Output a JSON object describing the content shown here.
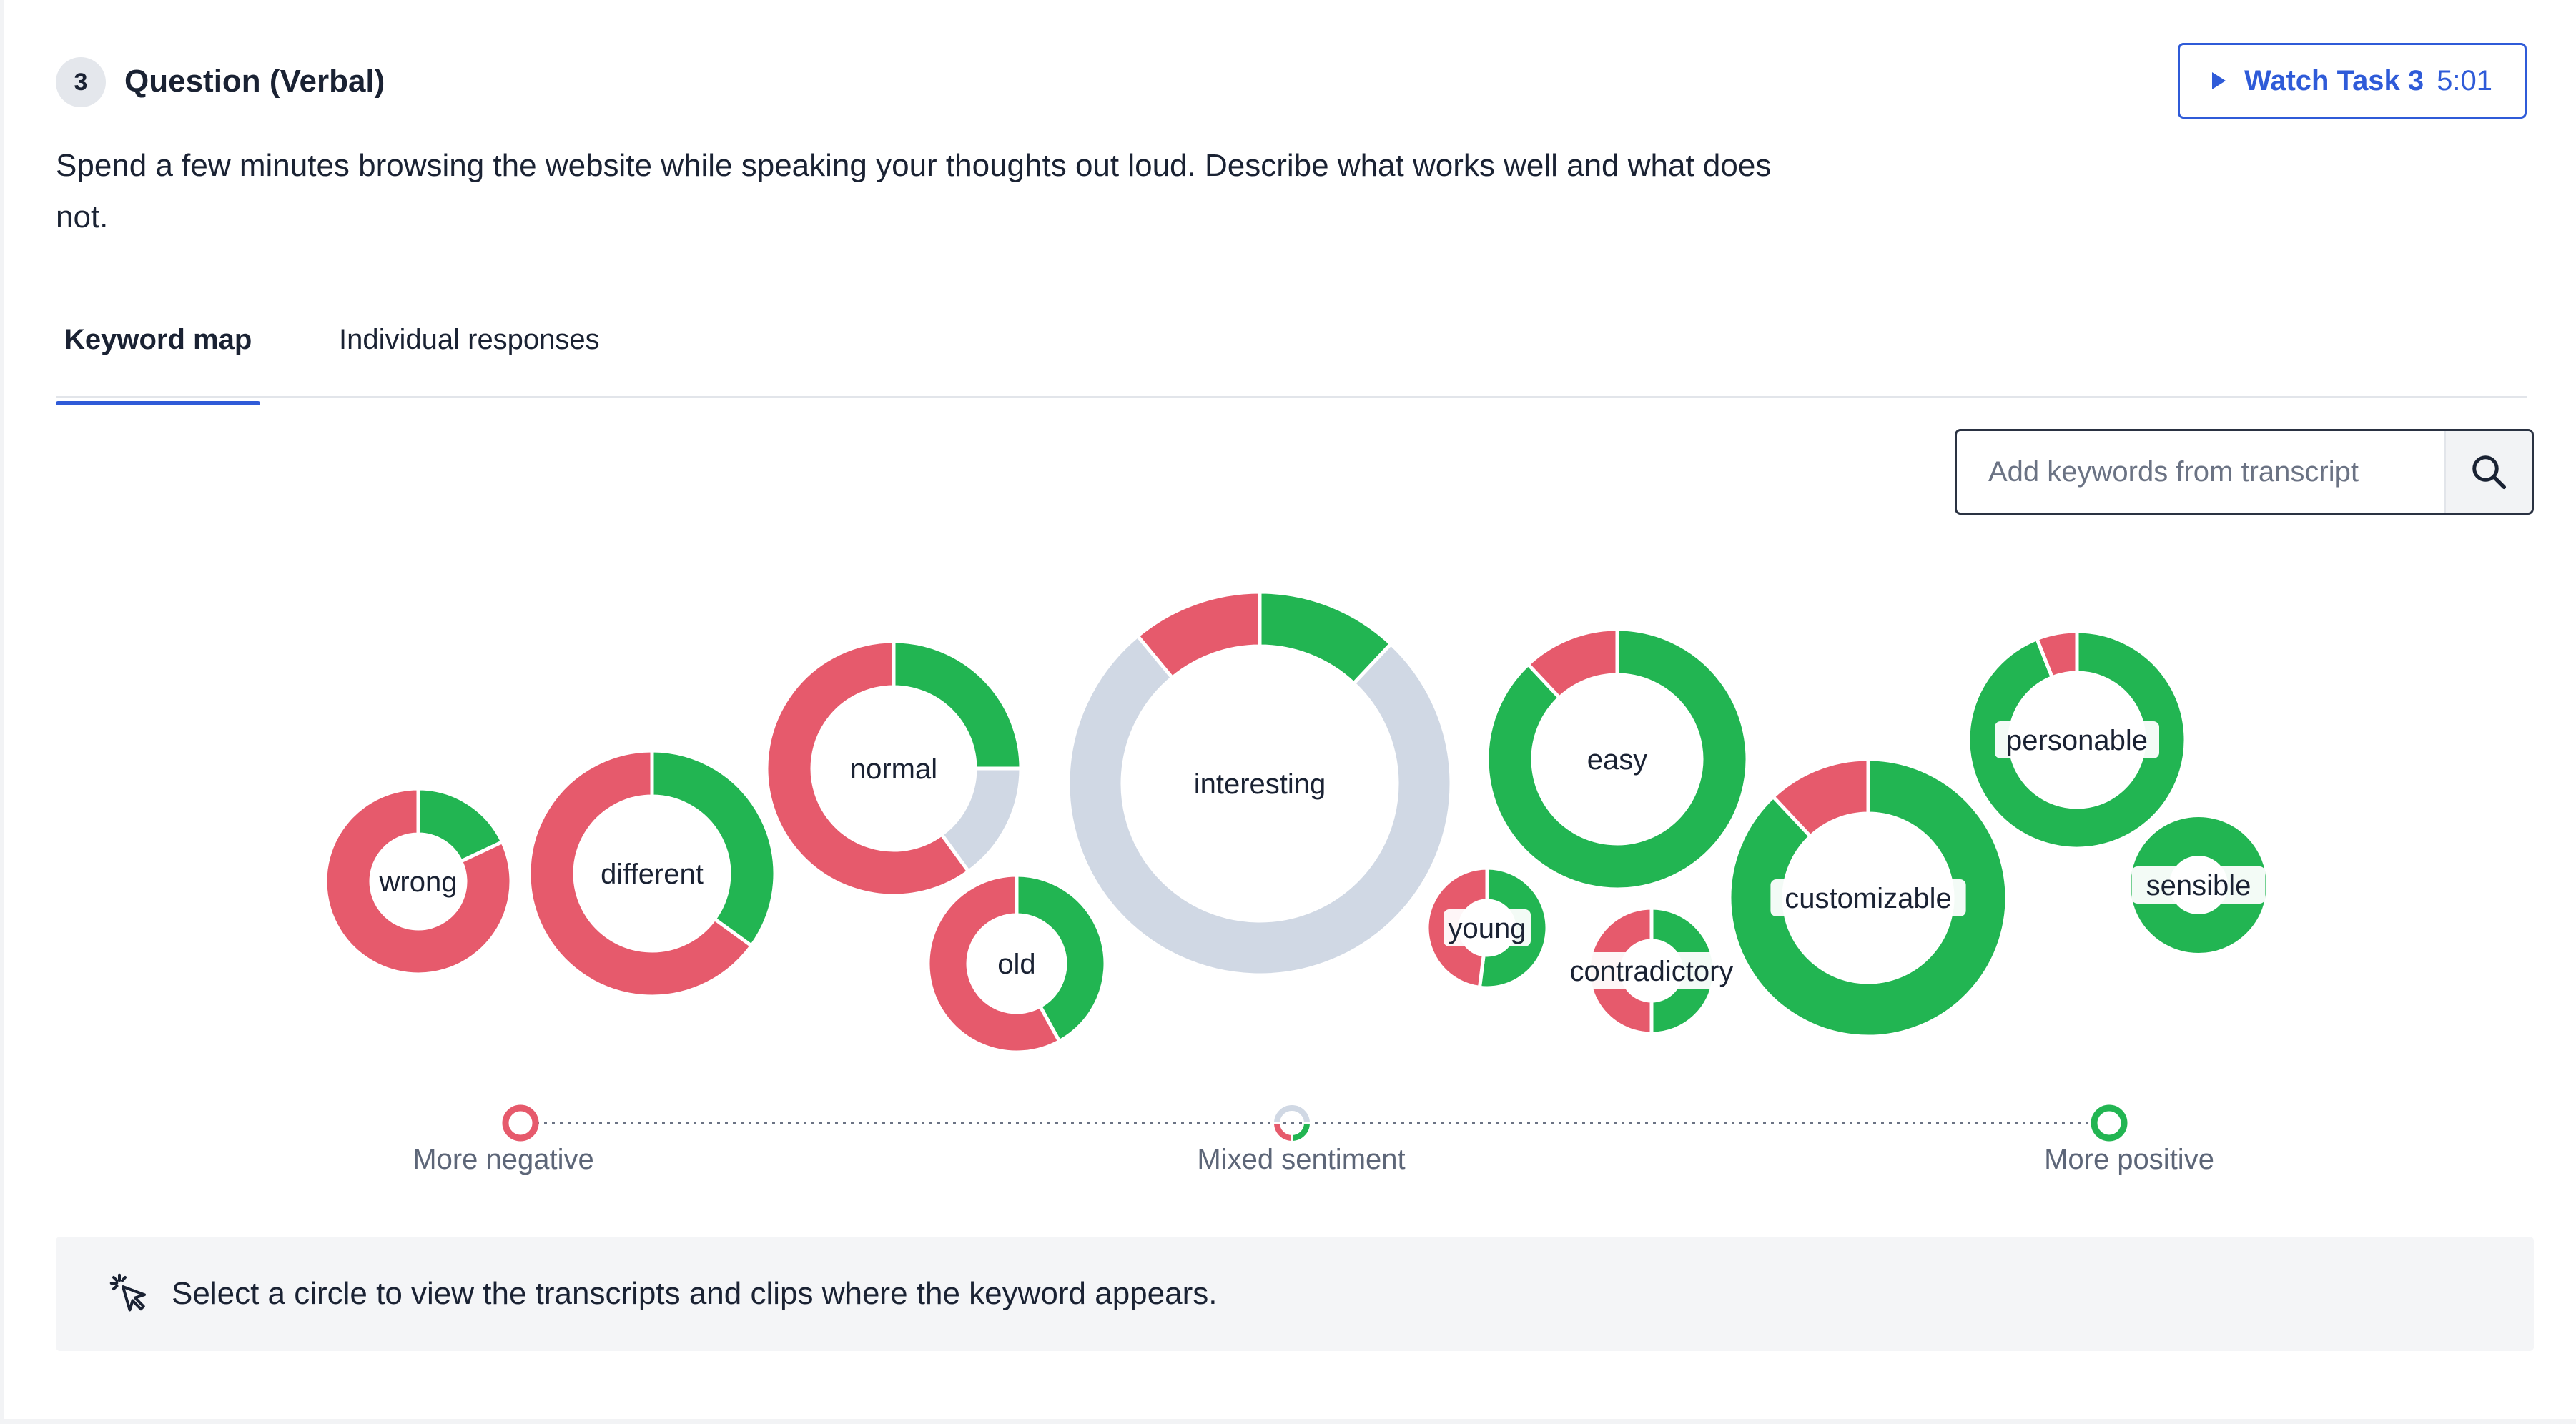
{
  "question": {
    "number": "3",
    "title": "Question (Verbal)",
    "description": "Spend a few minutes browsing the website while speaking your thoughts out loud. Describe what works well and what does not."
  },
  "watch_button": {
    "label": "Watch Task 3",
    "duration": "5:01"
  },
  "tabs": [
    {
      "label": "Keyword map",
      "active": true
    },
    {
      "label": "Individual responses",
      "active": false
    }
  ],
  "search": {
    "placeholder": "Add keywords from transcript",
    "value": "",
    "icon": "search-icon"
  },
  "colors": {
    "negative": "#e65a6c",
    "positive": "#22b552",
    "neutral": "#d0d8e4",
    "accent": "#2f5bd8"
  },
  "keywords": [
    {
      "label": "wrong",
      "negative": 0.82,
      "neutral": 0.0,
      "positive": 0.18
    },
    {
      "label": "different",
      "negative": 0.65,
      "neutral": 0.0,
      "positive": 0.35
    },
    {
      "label": "normal",
      "negative": 0.6,
      "neutral": 0.15,
      "positive": 0.25
    },
    {
      "label": "old",
      "negative": 0.58,
      "neutral": 0.0,
      "positive": 0.42
    },
    {
      "label": "interesting",
      "negative": 0.11,
      "neutral": 0.77,
      "positive": 0.12
    },
    {
      "label": "young",
      "negative": 0.48,
      "neutral": 0.0,
      "positive": 0.52
    },
    {
      "label": "contradictory",
      "negative": 0.5,
      "neutral": 0.0,
      "positive": 0.5
    },
    {
      "label": "easy",
      "negative": 0.12,
      "neutral": 0.0,
      "positive": 0.88
    },
    {
      "label": "customizable",
      "negative": 0.12,
      "neutral": 0.0,
      "positive": 0.88
    },
    {
      "label": "personable",
      "negative": 0.06,
      "neutral": 0.0,
      "positive": 0.94
    },
    {
      "label": "sensible",
      "negative": 0.0,
      "neutral": 0.0,
      "positive": 1.0
    }
  ],
  "legend": {
    "negative": "More negative",
    "mixed": "Mixed sentiment",
    "positive": "More positive"
  },
  "hint": {
    "icon": "cursor-click-icon",
    "text": "Select a circle to view the transcripts and clips where the keyword appears."
  }
}
